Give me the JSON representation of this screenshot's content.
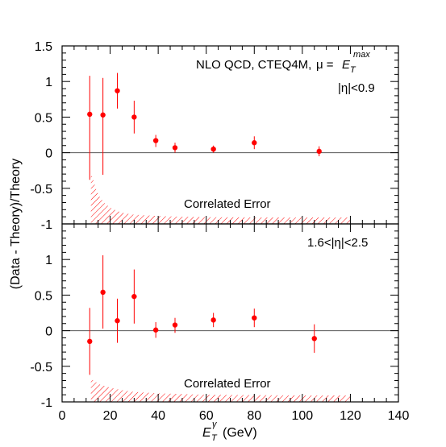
{
  "chart_data": [
    {
      "type": "scatter",
      "panel": "top",
      "annotations": [
        "NLO QCD, CTEQ4M,",
        "μ =",
        "E",
        "T",
        "max",
        "|η|<0.9"
      ],
      "band_label": "Correlated Error",
      "ylim": [
        -1,
        1.5
      ],
      "xlim": [
        0,
        140
      ],
      "y_ticks": [
        -1,
        -0.5,
        0,
        0.5,
        1,
        1.5
      ],
      "y_tick_labels": [
        "-1",
        "-0.5",
        "0",
        "0.5",
        "1",
        "1.5"
      ],
      "series": [
        {
          "x": [
            11.5,
            17,
            23,
            30,
            39,
            47,
            63,
            80,
            107
          ],
          "y": [
            0.54,
            0.53,
            0.87,
            0.5,
            0.17,
            0.07,
            0.05,
            0.14,
            0.02
          ],
          "err_low": [
            -0.38,
            -0.31,
            0.62,
            0.27,
            0.08,
            0.0,
            0.0,
            0.05,
            -0.05
          ],
          "err_high": [
            1.08,
            1.05,
            1.12,
            0.73,
            0.25,
            0.14,
            0.1,
            0.23,
            0.09
          ]
        }
      ],
      "band": {
        "x": [
          12,
          13,
          14,
          15,
          16,
          18,
          20,
          23,
          26,
          30,
          35,
          40,
          50,
          60,
          80,
          100,
          120
        ],
        "top": [
          -0.3,
          -0.38,
          -0.5,
          -0.58,
          -0.64,
          -0.72,
          -0.77,
          -0.82,
          -0.85,
          -0.87,
          -0.88,
          -0.89,
          -0.9,
          -0.905,
          -0.91,
          -0.91,
          -0.91
        ]
      }
    },
    {
      "type": "scatter",
      "panel": "bottom",
      "annotations": [
        "1.6<|η|<2.5"
      ],
      "band_label": "Correlated Error",
      "ylim": [
        -1,
        1.5
      ],
      "xlim": [
        0,
        140
      ],
      "y_ticks": [
        -1,
        -0.5,
        0,
        0.5,
        1
      ],
      "y_tick_labels": [
        "-1",
        "-0.5",
        "0",
        "0.5",
        "1"
      ],
      "x_ticks": [
        0,
        20,
        40,
        60,
        80,
        100,
        120,
        140
      ],
      "x_tick_labels": [
        "0",
        "20",
        "40",
        "60",
        "80",
        "100",
        "120",
        "140"
      ],
      "series": [
        {
          "x": [
            11.5,
            17,
            23,
            30,
            39,
            47,
            63,
            80,
            105
          ],
          "y": [
            -0.15,
            0.54,
            0.14,
            0.48,
            0.01,
            0.08,
            0.15,
            0.18,
            -0.11
          ],
          "err_low": [
            -0.62,
            0.03,
            -0.17,
            0.1,
            -0.1,
            -0.03,
            0.05,
            0.05,
            -0.31
          ],
          "err_high": [
            0.32,
            1.06,
            0.45,
            0.86,
            0.12,
            0.18,
            0.25,
            0.31,
            0.09
          ]
        }
      ],
      "band": {
        "x": [
          12,
          13,
          14,
          15,
          16,
          18,
          20,
          23,
          26,
          30,
          35,
          40,
          50,
          60,
          80,
          100,
          120
        ],
        "top": [
          -0.66,
          -0.7,
          -0.72,
          -0.74,
          -0.76,
          -0.78,
          -0.8,
          -0.82,
          -0.84,
          -0.86,
          -0.87,
          -0.88,
          -0.89,
          -0.9,
          -0.905,
          -0.91,
          -0.91
        ]
      }
    }
  ],
  "axes": {
    "xlabel": "(GeV)",
    "xlabel_symbol": "E",
    "xlabel_sub": "T",
    "xlabel_sup": "γ",
    "ylabel": "(Data - Theory)/Theory"
  },
  "colors": {
    "points": "#ff0000",
    "band": "#ff0000",
    "frame": "#000000",
    "zero_line": "#555555"
  }
}
